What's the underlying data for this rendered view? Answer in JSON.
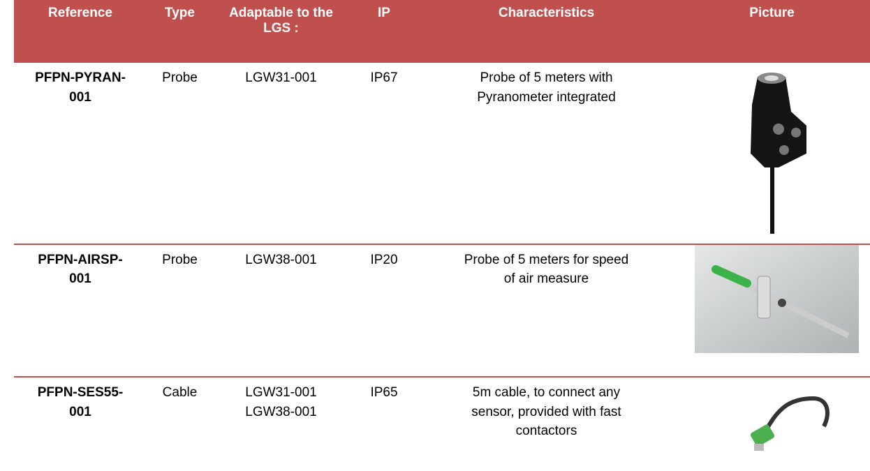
{
  "table": {
    "headers": [
      "Reference",
      "Type",
      "Adaptable to the LGS :",
      "IP",
      "Characteristics",
      "Picture"
    ],
    "rows": [
      {
        "reference": "PFPN-PYRAN-001",
        "type": "Probe",
        "adaptable": [
          "LGW31-001"
        ],
        "ip": "IP67",
        "characteristics": "Probe of 5 meters with Pyranometer integrated"
      },
      {
        "reference": "PFPN-AIRSP-001",
        "type": "Probe",
        "adaptable": [
          "LGW38-001"
        ],
        "ip": "IP20",
        "characteristics": "Probe of 5 meters for speed of air measure"
      },
      {
        "reference": "PFPN-SES55-001",
        "type": "Cable",
        "adaptable": [
          "LGW31-001",
          "LGW38-001"
        ],
        "ip": "IP65",
        "characteristics": "5m cable, to connect any sensor, provided with fast contactors"
      }
    ]
  }
}
